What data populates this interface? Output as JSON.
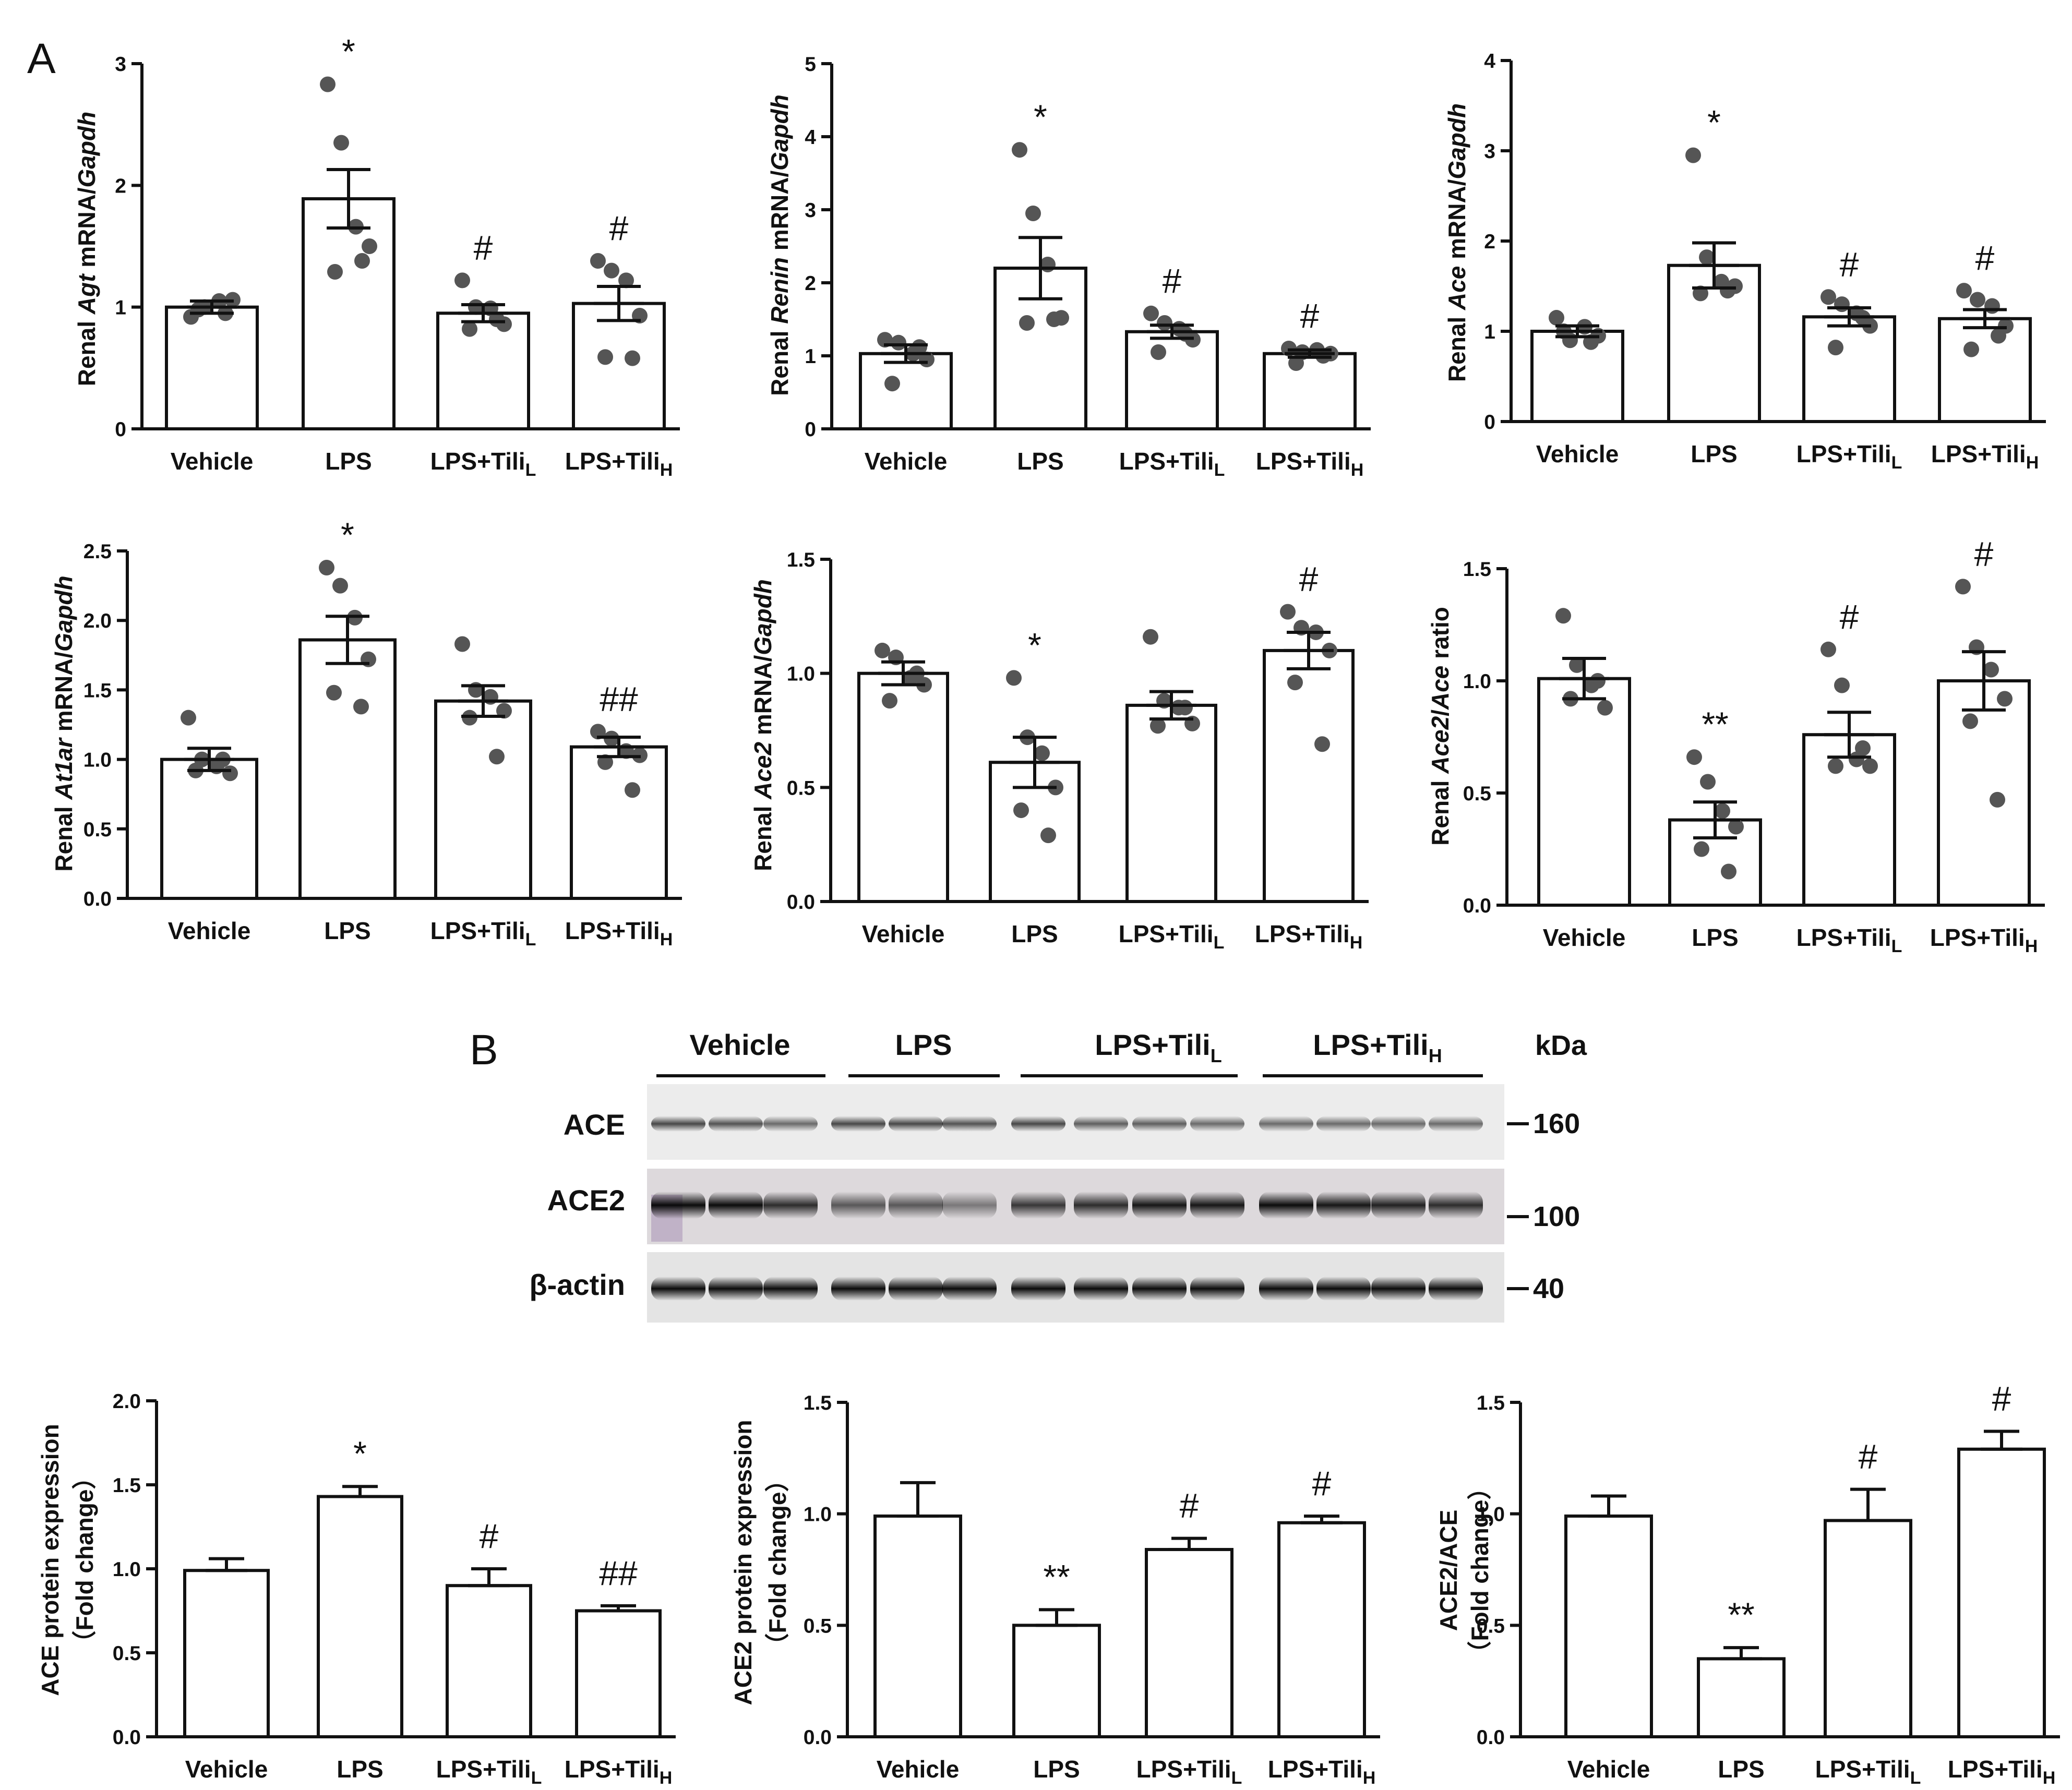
{
  "panels": {
    "A": "A",
    "B": "B"
  },
  "groups": {
    "vehicle": "Vehicle",
    "lps": "LPS",
    "tili_l": "LPS+Tili",
    "tili_h": "LPS+Tili",
    "sub_l": "L",
    "sub_h": "H"
  },
  "ylabels": {
    "renal": "Renal ",
    "mrna": " mRNA/",
    "gapdh": "Gapdh",
    "agt": "Agt",
    "renin": "Renin",
    "ace": "Ace",
    "at1ar": "At1ar",
    "ace2": "Ace2",
    "slash": "/",
    "ratio": " ratio",
    "ace_protein": "ACE protein expression",
    "ace2_protein": "ACE2 protein expression",
    "ace2_ace": "ACE2/ACE",
    "fold_change": "（Fold change）"
  },
  "blot": {
    "header": "kDa",
    "rows": [
      {
        "label": "ACE",
        "kda": "160"
      },
      {
        "label": "ACE2",
        "kda": "100"
      },
      {
        "label": "β-actin",
        "kda": "40"
      }
    ]
  },
  "chart_data": [
    {
      "type": "bar",
      "panel": "A",
      "ylabel": "Renal Agt mRNA/Gapdh",
      "categories": [
        "Vehicle",
        "LPS",
        "LPS+TiliL",
        "LPS+TiliH"
      ],
      "ylim": [
        0,
        3
      ],
      "yticks": [
        "0",
        "1",
        "2",
        "3"
      ],
      "values": [
        1.0,
        1.89,
        0.95,
        1.03
      ],
      "sem": [
        0.05,
        0.24,
        0.07,
        0.14
      ],
      "points": [
        [
          0.92,
          1.0,
          1.05,
          1.06,
          0.98,
          0.95
        ],
        [
          2.83,
          2.35,
          1.66,
          1.5,
          1.29,
          1.38
        ],
        [
          1.22,
          1.0,
          0.99,
          0.86,
          0.82,
          0.9
        ],
        [
          1.38,
          1.3,
          1.22,
          0.93,
          0.59,
          0.58
        ]
      ],
      "significance": [
        "",
        "*",
        "#",
        "#"
      ]
    },
    {
      "type": "bar",
      "ylabel": "Renal Renin mRNA/Gapdh",
      "categories": [
        "Vehicle",
        "LPS",
        "LPS+TiliL",
        "LPS+TiliH"
      ],
      "ylim": [
        0,
        5
      ],
      "yticks": [
        "0",
        "1",
        "2",
        "3",
        "4",
        "5"
      ],
      "values": [
        1.03,
        2.2,
        1.33,
        1.03
      ],
      "sem": [
        0.12,
        0.42,
        0.09,
        0.05
      ],
      "points": [
        [
          1.22,
          1.18,
          1.03,
          0.95,
          0.62,
          1.12
        ],
        [
          3.82,
          2.95,
          2.25,
          1.52,
          1.45,
          1.5
        ],
        [
          1.58,
          1.45,
          1.37,
          1.22,
          1.05,
          1.3
        ],
        [
          1.1,
          1.05,
          1.08,
          1.03,
          0.9,
          1.0
        ]
      ],
      "significance": [
        "",
        "*",
        "#",
        "#"
      ]
    },
    {
      "type": "bar",
      "ylabel": "Renal Ace mRNA/Gapdh",
      "categories": [
        "Vehicle",
        "LPS",
        "LPS+TiliL",
        "LPS+TiliH"
      ],
      "ylim": [
        0,
        4
      ],
      "yticks": [
        "0",
        "1",
        "2",
        "3",
        "4"
      ],
      "values": [
        1.0,
        1.73,
        1.16,
        1.14
      ],
      "sem": [
        0.06,
        0.25,
        0.1,
        0.1
      ],
      "points": [
        [
          1.15,
          0.9,
          1.05,
          0.95,
          1.0,
          0.88
        ],
        [
          2.95,
          1.82,
          1.55,
          1.5,
          1.42,
          1.45
        ],
        [
          1.38,
          1.3,
          1.2,
          1.06,
          0.82,
          1.15
        ],
        [
          1.45,
          1.35,
          1.28,
          1.06,
          0.8,
          0.95
        ]
      ],
      "significance": [
        "",
        "*",
        "#",
        "#"
      ]
    },
    {
      "type": "bar",
      "ylabel": "Renal At1ar mRNA/Gapdh",
      "categories": [
        "Vehicle",
        "LPS",
        "LPS+TiliL",
        "LPS+TiliH"
      ],
      "ylim": [
        0,
        2.5
      ],
      "yticks": [
        "0.0",
        "0.5",
        "1.0",
        "1.5",
        "2.0",
        "2.5"
      ],
      "values": [
        1.0,
        1.86,
        1.42,
        1.09
      ],
      "sem": [
        0.08,
        0.17,
        0.11,
        0.07
      ],
      "points": [
        [
          1.3,
          1.0,
          0.95,
          0.9,
          0.92,
          1.0
        ],
        [
          2.38,
          2.25,
          2.02,
          1.72,
          1.48,
          1.38
        ],
        [
          1.83,
          1.5,
          1.45,
          1.35,
          1.3,
          1.02
        ],
        [
          1.2,
          1.15,
          1.06,
          1.03,
          0.98,
          0.78
        ]
      ],
      "significance": [
        "",
        "*",
        "",
        "##"
      ]
    },
    {
      "type": "bar",
      "ylabel": "Renal Ace2 mRNA/Gapdh",
      "categories": [
        "Vehicle",
        "LPS",
        "LPS+TiliL",
        "LPS+TiliH"
      ],
      "ylim": [
        0,
        1.5
      ],
      "yticks": [
        "0.0",
        "0.5",
        "1.0",
        "1.5"
      ],
      "values": [
        1.0,
        0.61,
        0.86,
        1.1
      ],
      "sem": [
        0.05,
        0.11,
        0.06,
        0.08
      ],
      "points": [
        [
          1.1,
          1.07,
          0.98,
          0.95,
          0.88,
          1.0
        ],
        [
          0.98,
          0.72,
          0.65,
          0.5,
          0.4,
          0.29
        ],
        [
          1.16,
          0.88,
          0.85,
          0.78,
          0.77,
          0.85
        ],
        [
          1.27,
          1.2,
          1.18,
          1.1,
          0.96,
          0.69
        ]
      ],
      "significance": [
        "",
        "*",
        "",
        "#"
      ]
    },
    {
      "type": "bar",
      "ylabel": "Renal Ace2/Ace ratio",
      "categories": [
        "Vehicle",
        "LPS",
        "LPS+TiliL",
        "LPS+TiliH"
      ],
      "ylim": [
        0,
        1.5
      ],
      "yticks": [
        "0.0",
        "0.5",
        "1.0",
        "1.5"
      ],
      "values": [
        1.01,
        0.38,
        0.76,
        1.0
      ],
      "sem": [
        0.09,
        0.08,
        0.1,
        0.13
      ],
      "points": [
        [
          1.29,
          1.07,
          0.98,
          0.88,
          0.92,
          1.0
        ],
        [
          0.66,
          0.55,
          0.42,
          0.35,
          0.25,
          0.15
        ],
        [
          1.14,
          0.98,
          0.65,
          0.62,
          0.62,
          0.7
        ],
        [
          1.42,
          1.15,
          1.05,
          0.92,
          0.82,
          0.47
        ]
      ],
      "significance": [
        "",
        "**",
        "#",
        "#"
      ]
    },
    {
      "type": "bar",
      "panel": "B",
      "ylabel": "ACE protein expression （Fold change）",
      "categories": [
        "Vehicle",
        "LPS",
        "LPS+TiliL",
        "LPS+TiliH"
      ],
      "ylim": [
        0,
        2
      ],
      "yticks": [
        "0.0",
        "0.5",
        "1.0",
        "1.5",
        "2.0"
      ],
      "values": [
        0.99,
        1.43,
        0.9,
        0.75
      ],
      "sem": [
        0.07,
        0.06,
        0.1,
        0.03
      ],
      "significance": [
        "",
        "*",
        "#",
        "##"
      ]
    },
    {
      "type": "bar",
      "ylabel": "ACE2 protein expression （Fold change）",
      "categories": [
        "Vehicle",
        "LPS",
        "LPS+TiliL",
        "LPS+TiliH"
      ],
      "ylim": [
        0,
        1.5
      ],
      "yticks": [
        "0.0",
        "0.5",
        "1.0",
        "1.5"
      ],
      "values": [
        0.99,
        0.5,
        0.84,
        0.96
      ],
      "sem": [
        0.15,
        0.07,
        0.05,
        0.03
      ],
      "significance": [
        "",
        "**",
        "#",
        "#"
      ]
    },
    {
      "type": "bar",
      "ylabel": "ACE2/ACE （Fold change）",
      "categories": [
        "Vehicle",
        "LPS",
        "LPS+TiliL",
        "LPS+TiliH"
      ],
      "ylim": [
        0,
        1.5
      ],
      "yticks": [
        "0.0",
        "0.5",
        "1.0",
        "1.5"
      ],
      "values": [
        0.99,
        0.35,
        0.97,
        1.29
      ],
      "sem": [
        0.09,
        0.05,
        0.14,
        0.08
      ],
      "significance": [
        "",
        "**",
        "#",
        "#"
      ]
    }
  ]
}
